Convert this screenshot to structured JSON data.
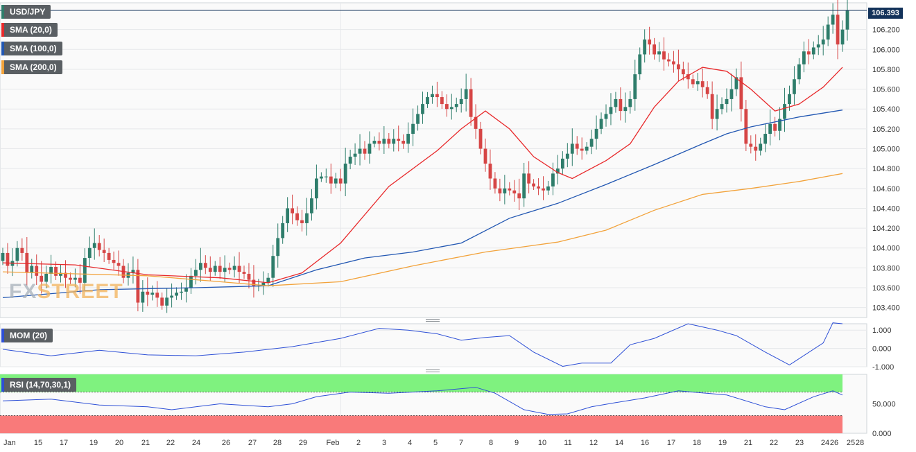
{
  "labels": {
    "symbol": "USD/JPY",
    "sma20": "SMA (20,0)",
    "sma100": "SMA (100,0)",
    "sma200": "SMA (200,0)",
    "mom": "MOM (20)",
    "rsi": "RSI (14,70,30,1)"
  },
  "watermark": {
    "prefix": "FX",
    "suffix": "STREET"
  },
  "colors": {
    "bull": "#2e7d6b",
    "bear": "#d64545",
    "sma20": "#e8292b",
    "sma100": "#2257b2",
    "sma200": "#f2a23a",
    "mom_line": "#2d4fd6",
    "rsi_line": "#2d4fd6",
    "rsi_overbought": "#7ff27f",
    "rsi_oversold": "#f97a7a",
    "last_price_tag": "#13325a"
  },
  "chart_data": [
    {
      "type": "candlestick",
      "name": "USD/JPY",
      "last_price": "106.393",
      "ylim": [
        103.3,
        106.47
      ],
      "y_ticks": [
        "106.200",
        "106.000",
        "105.800",
        "105.600",
        "105.400",
        "105.200",
        "105.000",
        "104.800",
        "104.600",
        "104.400",
        "104.200",
        "104.000",
        "103.800",
        "103.600",
        "103.400"
      ],
      "x_tick_labels": [
        "Jan",
        "15",
        "17",
        "19",
        "20",
        "21",
        "22",
        "24",
        "26",
        "27",
        "28",
        "29",
        "Feb",
        "2",
        "3",
        "4",
        "5",
        "7",
        "8",
        "9",
        "10",
        "11",
        "12",
        "14",
        "16",
        "17",
        "18",
        "19",
        "21",
        "22",
        "23",
        "24",
        "25",
        "26",
        "28"
      ],
      "close": [
        103.95,
        103.82,
        103.87,
        104.0,
        103.95,
        103.75,
        103.82,
        103.72,
        103.66,
        103.74,
        103.81,
        103.72,
        103.75,
        103.7,
        103.68,
        103.7,
        103.65,
        103.9,
        104.0,
        104.05,
        103.98,
        103.95,
        103.88,
        103.85,
        103.82,
        103.7,
        103.75,
        103.78,
        103.45,
        103.56,
        103.53,
        103.55,
        103.5,
        103.42,
        103.5,
        103.52,
        103.55,
        103.56,
        103.6,
        103.72,
        103.78,
        103.85,
        103.8,
        103.76,
        103.82,
        103.76,
        103.8,
        103.78,
        103.82,
        103.76,
        103.74,
        103.68,
        103.62,
        103.62,
        103.65,
        103.7,
        103.92,
        104.1,
        104.25,
        104.4,
        104.35,
        104.28,
        104.25,
        104.35,
        104.5,
        104.7,
        104.72,
        104.72,
        104.65,
        104.7,
        104.65,
        104.85,
        104.92,
        104.95,
        105.0,
        104.95,
        105.05,
        105.08,
        105.05,
        105.1,
        105.05,
        105.1,
        105.08,
        105.05,
        105.15,
        105.25,
        105.35,
        105.45,
        105.52,
        105.55,
        105.52,
        105.45,
        105.4,
        105.42,
        105.45,
        105.5,
        105.6,
        105.32,
        105.2,
        105.0,
        104.85,
        104.7,
        104.6,
        104.55,
        104.6,
        104.58,
        104.55,
        104.5,
        104.75,
        104.65,
        104.62,
        104.6,
        104.58,
        104.62,
        104.75,
        104.8,
        104.9,
        104.95,
        105.05,
        105.0,
        104.98,
        105.02,
        105.1,
        105.2,
        105.3,
        105.35,
        105.42,
        105.5,
        105.38,
        105.42,
        105.5,
        105.75,
        105.95,
        106.1,
        106.05,
        105.95,
        105.98,
        105.9,
        105.88,
        105.85,
        105.8,
        105.75,
        105.7,
        105.65,
        105.68,
        105.62,
        105.55,
        105.3,
        105.4,
        105.45,
        105.5,
        105.6,
        105.72,
        105.4,
        105.05,
        105.02,
        104.98,
        105.05,
        105.15,
        105.25,
        105.18,
        105.3,
        105.45,
        105.55,
        105.7,
        105.85,
        105.98,
        105.95,
        106.02,
        106.05,
        106.1,
        106.25,
        106.35,
        106.05,
        106.2,
        106.393
      ],
      "series": [
        {
          "name": "SMA (20,0)",
          "color": "#e8292b",
          "points": [
            [
              0,
              103.85
            ],
            [
              15,
              103.83
            ],
            [
              30,
              103.73
            ],
            [
              45,
              103.7
            ],
            [
              55,
              103.65
            ],
            [
              62,
              103.75
            ],
            [
              70,
              104.05
            ],
            [
              80,
              104.62
            ],
            [
              90,
              104.98
            ],
            [
              95,
              105.2
            ],
            [
              100,
              105.38
            ],
            [
              105,
              105.2
            ],
            [
              110,
              104.92
            ],
            [
              115,
              104.76
            ],
            [
              118,
              104.7
            ],
            [
              125,
              104.88
            ],
            [
              130,
              105.05
            ],
            [
              135,
              105.42
            ],
            [
              140,
              105.68
            ],
            [
              145,
              105.82
            ],
            [
              150,
              105.78
            ],
            [
              155,
              105.6
            ],
            [
              160,
              105.38
            ],
            [
              165,
              105.45
            ],
            [
              170,
              105.62
            ],
            [
              174,
              105.82
            ]
          ]
        },
        {
          "name": "SMA (100,0)",
          "color": "#2257b2",
          "points": [
            [
              0,
              103.5
            ],
            [
              20,
              103.58
            ],
            [
              40,
              103.6
            ],
            [
              55,
              103.62
            ],
            [
              65,
              103.78
            ],
            [
              75,
              103.9
            ],
            [
              85,
              103.96
            ],
            [
              95,
              104.05
            ],
            [
              105,
              104.3
            ],
            [
              115,
              104.45
            ],
            [
              125,
              104.64
            ],
            [
              135,
              104.84
            ],
            [
              145,
              105.05
            ],
            [
              150,
              105.15
            ],
            [
              155,
              105.22
            ],
            [
              165,
              105.32
            ],
            [
              174,
              105.39
            ]
          ]
        },
        {
          "name": "SMA (200,0)",
          "color": "#f2a23a",
          "points": [
            [
              0,
              103.76
            ],
            [
              15,
              103.74
            ],
            [
              30,
              103.72
            ],
            [
              45,
              103.66
            ],
            [
              55,
              103.62
            ],
            [
              70,
              103.66
            ],
            [
              85,
              103.82
            ],
            [
              100,
              103.96
            ],
            [
              115,
              104.06
            ],
            [
              125,
              104.18
            ],
            [
              135,
              104.38
            ],
            [
              145,
              104.54
            ],
            [
              155,
              104.6
            ],
            [
              165,
              104.67
            ],
            [
              174,
              104.75
            ]
          ]
        }
      ]
    },
    {
      "type": "line",
      "name": "MOM (20)",
      "ylim": [
        -1.0,
        1.35
      ],
      "y_ticks": [
        "1.000",
        "0.000",
        "-1.000"
      ],
      "points": [
        [
          0,
          -0.05
        ],
        [
          10,
          -0.4
        ],
        [
          20,
          -0.1
        ],
        [
          30,
          -0.35
        ],
        [
          40,
          -0.4
        ],
        [
          50,
          -0.2
        ],
        [
          60,
          0.1
        ],
        [
          70,
          0.55
        ],
        [
          78,
          1.1
        ],
        [
          84,
          1.0
        ],
        [
          90,
          0.8
        ],
        [
          95,
          0.45
        ],
        [
          100,
          0.6
        ],
        [
          105,
          0.7
        ],
        [
          110,
          -0.2
        ],
        [
          116,
          -0.98
        ],
        [
          120,
          -0.8
        ],
        [
          126,
          -0.8
        ],
        [
          130,
          0.2
        ],
        [
          135,
          0.55
        ],
        [
          142,
          1.35
        ],
        [
          148,
          1.0
        ],
        [
          152,
          0.7
        ],
        [
          158,
          -0.2
        ],
        [
          163,
          -0.9
        ],
        [
          170,
          0.3
        ],
        [
          172,
          1.4
        ],
        [
          174,
          1.35
        ]
      ]
    },
    {
      "type": "line",
      "name": "RSI (14,70,30,1)",
      "ylim": [
        0,
        100
      ],
      "overbought": 70,
      "oversold": 30,
      "y_ticks": [
        "50.000",
        "0.000"
      ],
      "points": [
        [
          0,
          55
        ],
        [
          10,
          58
        ],
        [
          20,
          48
        ],
        [
          30,
          45
        ],
        [
          35,
          40
        ],
        [
          45,
          50
        ],
        [
          55,
          45
        ],
        [
          60,
          50
        ],
        [
          65,
          62
        ],
        [
          72,
          70
        ],
        [
          80,
          68
        ],
        [
          90,
          72
        ],
        [
          98,
          78
        ],
        [
          102,
          68
        ],
        [
          108,
          40
        ],
        [
          113,
          32
        ],
        [
          117,
          33
        ],
        [
          122,
          45
        ],
        [
          127,
          52
        ],
        [
          133,
          60
        ],
        [
          140,
          72
        ],
        [
          150,
          65
        ],
        [
          158,
          45
        ],
        [
          162,
          40
        ],
        [
          168,
          62
        ],
        [
          172,
          72
        ],
        [
          174,
          65
        ]
      ]
    }
  ]
}
